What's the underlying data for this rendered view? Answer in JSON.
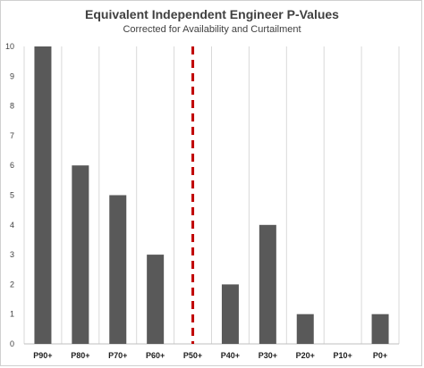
{
  "chart_data": {
    "type": "bar",
    "title": "Equivalent Independent Engineer P-Values",
    "subtitle": "Corrected for Availability and Curtailment",
    "categories": [
      "P90+",
      "P80+",
      "P70+",
      "P60+",
      "P50+",
      "P40+",
      "P30+",
      "P20+",
      "P10+",
      "P0+"
    ],
    "values": [
      10,
      6,
      5,
      3,
      0,
      2,
      4,
      1,
      0,
      1
    ],
    "yticks": [
      "0",
      "1",
      "2",
      "3",
      "4",
      "5",
      "6",
      "7",
      "8",
      "9",
      "10"
    ],
    "ylim": [
      0,
      10
    ],
    "grid": "vertical",
    "bar_color": "#595959",
    "reference_line": {
      "at_category": "P50+",
      "style": "dashed",
      "color": "#c00000"
    }
  }
}
